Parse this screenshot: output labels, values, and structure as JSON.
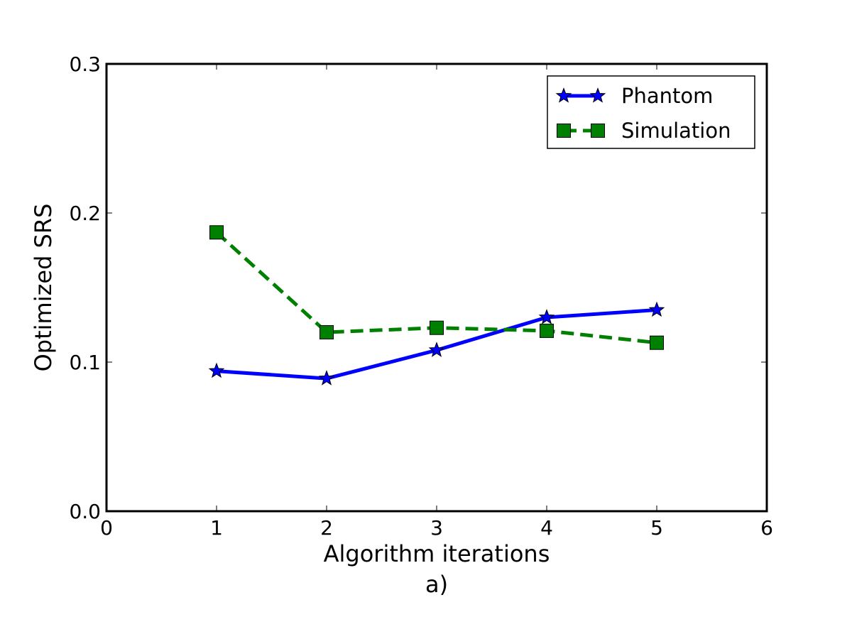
{
  "chart_data": {
    "type": "line",
    "xlabel": "Algorithm iterations",
    "sublabel": "a)",
    "ylabel": "Optimized SRS",
    "xlim": [
      0,
      6
    ],
    "ylim": [
      0.0,
      0.3
    ],
    "xticks": [
      0,
      1,
      2,
      3,
      4,
      5,
      6
    ],
    "xtick_labels": [
      "0",
      "1",
      "2",
      "3",
      "4",
      "5",
      "6"
    ],
    "yticks": [
      0.0,
      0.1,
      0.2,
      0.3
    ],
    "ytick_labels": [
      "0.0",
      "0.1",
      "0.2",
      "0.3"
    ],
    "grid": false,
    "legend_position": "top-right",
    "series": [
      {
        "name": "Phantom",
        "x": [
          1,
          2,
          3,
          4,
          5
        ],
        "y": [
          0.094,
          0.089,
          0.108,
          0.13,
          0.135
        ],
        "color": "#0000ff",
        "line_style": "solid",
        "marker": "star"
      },
      {
        "name": "Simulation",
        "x": [
          1,
          2,
          3,
          4,
          5
        ],
        "y": [
          0.187,
          0.12,
          0.123,
          0.121,
          0.113
        ],
        "color": "#008000",
        "line_style": "dashed",
        "marker": "square"
      }
    ]
  }
}
